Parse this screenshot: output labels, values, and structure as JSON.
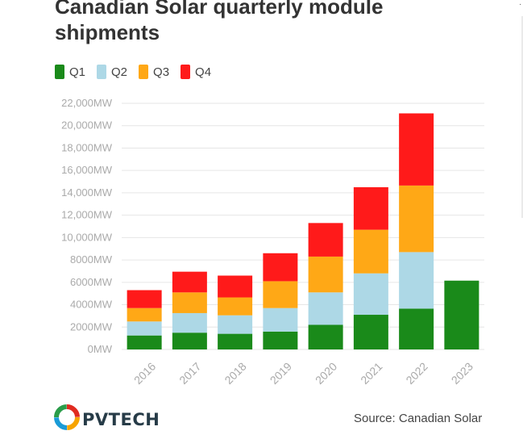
{
  "title": "Canadian Solar quarterly module shipments",
  "legend": {
    "q1": {
      "label": "Q1",
      "color": "#1a8a1a"
    },
    "q2": {
      "label": "Q2",
      "color": "#add8e6"
    },
    "q3": {
      "label": "Q3",
      "color": "#ffa816"
    },
    "q4": {
      "label": "Q4",
      "color": "#ff1a1a"
    }
  },
  "source": "Source: Canadian Solar",
  "logo": {
    "text": "PVTECH",
    "icon": "pvtech-logo-icon"
  },
  "chart_data": {
    "type": "bar",
    "stacked": true,
    "title": "Canadian Solar quarterly module shipments",
    "xlabel": "",
    "ylabel": "",
    "categories": [
      "2016",
      "2017",
      "2018",
      "2019",
      "2020",
      "2021",
      "2022",
      "2023"
    ],
    "y_ticks": [
      "0MW",
      "2000MW",
      "4000MW",
      "6000MW",
      "8000MW",
      "10,000MW",
      "12,000MW",
      "14,000MW",
      "16,000MW",
      "18,000MW",
      "20,000MW",
      "22,000MW"
    ],
    "ylim": [
      0,
      22000
    ],
    "grid": true,
    "legend_position": "top-left",
    "series": [
      {
        "name": "Q1",
        "color": "#1a8a1a",
        "values": [
          1250,
          1500,
          1400,
          1600,
          2200,
          3100,
          3650,
          6150
        ]
      },
      {
        "name": "Q2",
        "color": "#add8e6",
        "values": [
          1250,
          1750,
          1650,
          2100,
          2900,
          3700,
          5050,
          0
        ]
      },
      {
        "name": "Q3",
        "color": "#ffa816",
        "values": [
          1200,
          1850,
          1600,
          2400,
          3200,
          3900,
          5950,
          0
        ]
      },
      {
        "name": "Q4",
        "color": "#ff1a1a",
        "values": [
          1600,
          1850,
          1950,
          2500,
          3000,
          3800,
          6450,
          0
        ]
      }
    ]
  }
}
